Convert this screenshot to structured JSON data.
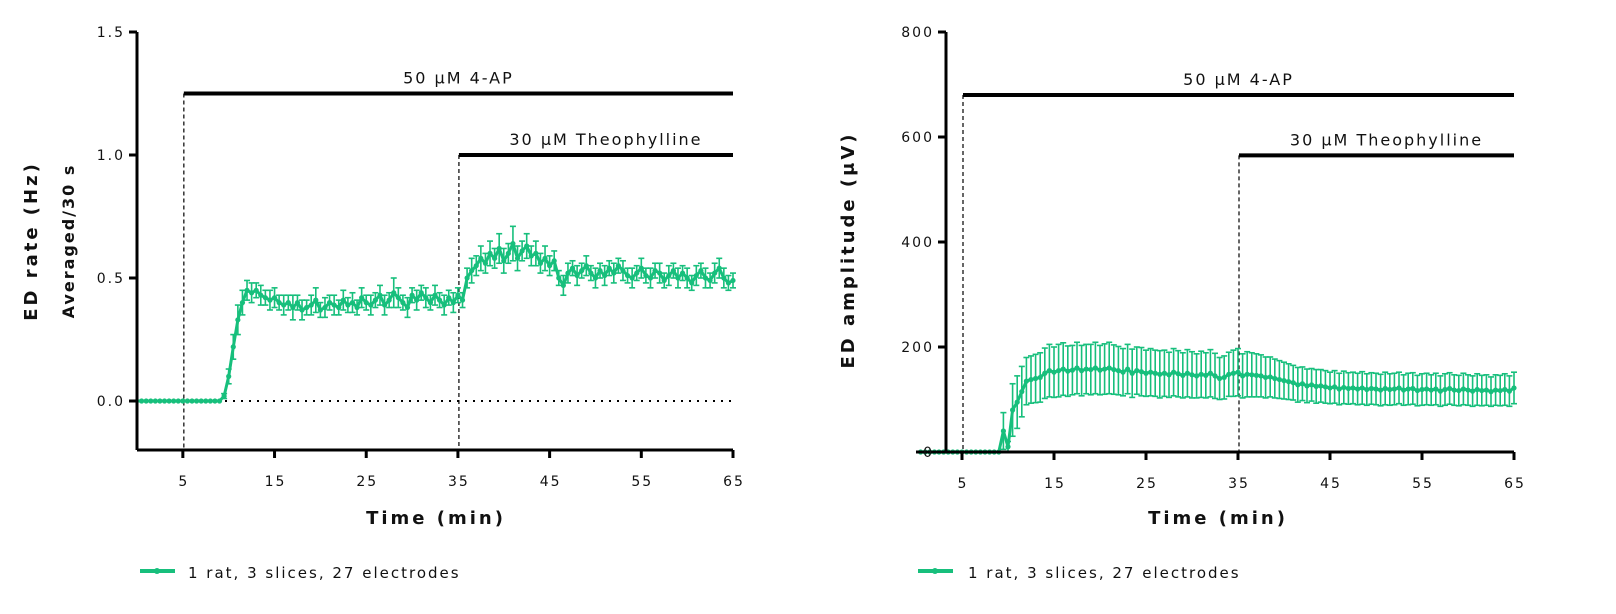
{
  "chart_data": [
    {
      "type": "line",
      "id": "rate",
      "title": "",
      "xlabel": "Time (min)",
      "ylabel": "ED rate (Hz)",
      "ylabel_sub": "Averaged/30 s",
      "xlim": [
        0,
        65
      ],
      "ylim": [
        -0.2,
        1.5
      ],
      "xticks": [
        5,
        15,
        25,
        35,
        45,
        55,
        65
      ],
      "xtick_labels": [
        "5",
        "15",
        "25",
        "35",
        "45",
        "55",
        "65"
      ],
      "yticks": [
        0.0,
        0.5,
        1.0,
        1.5
      ],
      "ytick_labels": [
        "0.0",
        "0.5",
        "1.0",
        "1.5"
      ],
      "grid": false,
      "zero_reference_line": "dotted",
      "annotations": [
        {
          "label": "50 μM 4-AP",
          "start": 5,
          "end": 65,
          "level": 1.25
        },
        {
          "label": "30 μM Theophylline",
          "start": 35,
          "end": 65,
          "level": 1.0
        }
      ],
      "legend": {
        "placement": "bottom-left",
        "entries": [
          "1 rat, 3 slices, 27 electrodes"
        ]
      },
      "series": [
        {
          "name": "1 rat, 3 slices, 27 electrodes",
          "color": "#17BF7C",
          "x_start": 0.5,
          "x_step": 0.5,
          "mean": [
            0,
            0,
            0,
            0,
            0,
            0,
            0,
            0,
            0,
            0,
            0,
            0,
            0,
            0,
            0,
            0,
            0,
            0,
            0.02,
            0.1,
            0.22,
            0.33,
            0.4,
            0.45,
            0.44,
            0.45,
            0.43,
            0.42,
            0.41,
            0.42,
            0.4,
            0.39,
            0.4,
            0.38,
            0.4,
            0.37,
            0.38,
            0.39,
            0.41,
            0.37,
            0.38,
            0.4,
            0.39,
            0.38,
            0.41,
            0.39,
            0.4,
            0.38,
            0.42,
            0.4,
            0.39,
            0.41,
            0.43,
            0.39,
            0.41,
            0.44,
            0.42,
            0.4,
            0.38,
            0.43,
            0.41,
            0.44,
            0.42,
            0.4,
            0.43,
            0.41,
            0.39,
            0.42,
            0.4,
            0.43,
            0.41,
            0.5,
            0.53,
            0.55,
            0.58,
            0.56,
            0.6,
            0.58,
            0.62,
            0.57,
            0.6,
            0.64,
            0.58,
            0.61,
            0.63,
            0.59,
            0.6,
            0.56,
            0.58,
            0.55,
            0.57,
            0.5,
            0.47,
            0.52,
            0.54,
            0.51,
            0.53,
            0.55,
            0.52,
            0.5,
            0.53,
            0.51,
            0.54,
            0.52,
            0.55,
            0.53,
            0.51,
            0.5,
            0.52,
            0.54,
            0.51,
            0.5,
            0.53,
            0.52,
            0.49,
            0.51,
            0.53,
            0.5,
            0.52,
            0.5,
            0.48,
            0.51,
            0.53,
            0.5,
            0.49,
            0.52,
            0.54,
            0.5,
            0.48,
            0.49
          ],
          "sem": [
            0,
            0,
            0,
            0,
            0,
            0,
            0,
            0,
            0,
            0,
            0,
            0,
            0,
            0,
            0,
            0,
            0,
            0,
            0.01,
            0.03,
            0.05,
            0.06,
            0.05,
            0.04,
            0.04,
            0.03,
            0.04,
            0.03,
            0.04,
            0.04,
            0.03,
            0.04,
            0.03,
            0.05,
            0.03,
            0.04,
            0.03,
            0.04,
            0.05,
            0.03,
            0.04,
            0.03,
            0.04,
            0.03,
            0.04,
            0.03,
            0.04,
            0.03,
            0.04,
            0.03,
            0.04,
            0.03,
            0.04,
            0.04,
            0.03,
            0.06,
            0.04,
            0.03,
            0.04,
            0.03,
            0.04,
            0.03,
            0.04,
            0.03,
            0.04,
            0.03,
            0.04,
            0.03,
            0.04,
            0.03,
            0.03,
            0.04,
            0.05,
            0.04,
            0.05,
            0.04,
            0.05,
            0.04,
            0.06,
            0.05,
            0.04,
            0.07,
            0.05,
            0.04,
            0.05,
            0.04,
            0.05,
            0.04,
            0.05,
            0.04,
            0.04,
            0.03,
            0.04,
            0.04,
            0.03,
            0.04,
            0.03,
            0.04,
            0.03,
            0.04,
            0.03,
            0.04,
            0.03,
            0.04,
            0.03,
            0.04,
            0.03,
            0.04,
            0.03,
            0.04,
            0.03,
            0.04,
            0.03,
            0.04,
            0.03,
            0.04,
            0.03,
            0.04,
            0.03,
            0.04,
            0.03,
            0.04,
            0.03,
            0.04,
            0.03,
            0.04,
            0.04,
            0.04,
            0.03,
            0.03
          ]
        }
      ]
    },
    {
      "type": "line",
      "id": "amplitude",
      "title": "",
      "xlabel": "Time (min)",
      "ylabel": "ED amplitude (μV)",
      "xlim": [
        0,
        65
      ],
      "ylim": [
        0,
        800
      ],
      "xticks": [
        5,
        15,
        25,
        35,
        45,
        55,
        65
      ],
      "xtick_labels": [
        "5",
        "15",
        "25",
        "35",
        "45",
        "55",
        "65"
      ],
      "yticks": [
        0,
        200,
        400,
        600,
        800
      ],
      "ytick_labels": [
        "0",
        "200",
        "400",
        "600",
        "800"
      ],
      "grid": false,
      "annotations": [
        {
          "label": "50 μM 4-AP",
          "start": 5,
          "end": 65,
          "level": 680
        },
        {
          "label": "30 μM Theophylline",
          "start": 35,
          "end": 65,
          "level": 565
        }
      ],
      "legend": {
        "placement": "bottom-left",
        "entries": [
          "1 rat, 3 slices, 27 electrodes"
        ]
      },
      "series": [
        {
          "name": "1 rat, 3 slices, 27 electrodes",
          "color": "#17BF7C",
          "x_start": 0.5,
          "x_step": 0.5,
          "mean": [
            0,
            0,
            0,
            0,
            0,
            0,
            0,
            0,
            0,
            0,
            0,
            0,
            0,
            0,
            0,
            0,
            0,
            0,
            40,
            10,
            80,
            95,
            115,
            135,
            138,
            140,
            142,
            150,
            155,
            152,
            155,
            158,
            154,
            156,
            160,
            155,
            158,
            157,
            160,
            156,
            158,
            160,
            157,
            155,
            152,
            158,
            150,
            155,
            153,
            150,
            152,
            150,
            148,
            150,
            147,
            152,
            149,
            146,
            150,
            147,
            145,
            148,
            146,
            150,
            145,
            140,
            142,
            148,
            150,
            152,
            145,
            148,
            147,
            146,
            145,
            142,
            143,
            140,
            138,
            136,
            134,
            132,
            128,
            130,
            126,
            128,
            125,
            126,
            124,
            122,
            124,
            120,
            123,
            121,
            122,
            120,
            122,
            119,
            121,
            120,
            118,
            121,
            119,
            120,
            122,
            118,
            120,
            121,
            117,
            119,
            120,
            118,
            120,
            116,
            119,
            121,
            118,
            117,
            120,
            118,
            116,
            119,
            117,
            118,
            115,
            118,
            117,
            119,
            116,
            122
          ],
          "sem": [
            0,
            0,
            0,
            0,
            0,
            0,
            0,
            0,
            0,
            0,
            0,
            0,
            0,
            0,
            0,
            0,
            0,
            0,
            35,
            10,
            50,
            50,
            48,
            45,
            45,
            46,
            47,
            48,
            50,
            48,
            50,
            50,
            48,
            47,
            49,
            48,
            47,
            48,
            49,
            47,
            48,
            49,
            47,
            46,
            45,
            47,
            46,
            45,
            46,
            44,
            45,
            44,
            45,
            44,
            43,
            45,
            44,
            43,
            45,
            44,
            42,
            44,
            43,
            45,
            43,
            40,
            41,
            42,
            44,
            45,
            42,
            43,
            42,
            41,
            40,
            39,
            38,
            37,
            36,
            35,
            34,
            33,
            33,
            32,
            32,
            31,
            32,
            31,
            31,
            30,
            31,
            30,
            31,
            30,
            30,
            30,
            31,
            30,
            30,
            30,
            30,
            31,
            30,
            30,
            30,
            29,
            30,
            30,
            29,
            30,
            30,
            29,
            30,
            29,
            30,
            30,
            29,
            29,
            30,
            29,
            29,
            30,
            29,
            29,
            28,
            29,
            29,
            30,
            29,
            30
          ]
        }
      ]
    }
  ]
}
